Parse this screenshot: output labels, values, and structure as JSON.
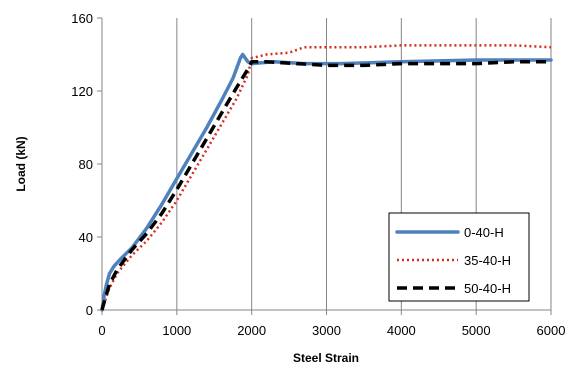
{
  "chart_data": {
    "type": "line",
    "title": "",
    "xlabel": "Steel  Strain",
    "ylabel": "Load  (kN)",
    "xlim": [
      0,
      6000
    ],
    "ylim": [
      0,
      160
    ],
    "xticks": [
      0,
      1000,
      2000,
      3000,
      4000,
      5000,
      6000
    ],
    "yticks": [
      0,
      40,
      80,
      120,
      160
    ],
    "xtick_labels": [
      "0",
      "1000",
      "2000",
      "3000",
      "4000",
      "5000",
      "6000"
    ],
    "ytick_labels": [
      "0",
      "40",
      "80",
      "120",
      "160"
    ],
    "grid": "vertical",
    "legend_position": "bottom-right",
    "series": [
      {
        "name": "0-40-H",
        "color": "#4f81bd",
        "style": "solid",
        "x": [
          0,
          30,
          60,
          100,
          160,
          250,
          400,
          600,
          800,
          1000,
          1200,
          1400,
          1600,
          1750,
          1850,
          1880,
          1950,
          2000,
          2300,
          2700,
          3200,
          4000,
          5000,
          6000
        ],
        "y": [
          0,
          8,
          14,
          20,
          24,
          28,
          34,
          45,
          58,
          72,
          86,
          100,
          115,
          127,
          138,
          140,
          136,
          135,
          136,
          135,
          135,
          136,
          137,
          137
        ]
      },
      {
        "name": "35-40-H",
        "color": "#d62d20",
        "style": "dotted",
        "x": [
          0,
          40,
          100,
          200,
          400,
          600,
          800,
          1000,
          1200,
          1400,
          1600,
          1800,
          1950,
          2000,
          2200,
          2500,
          2700,
          3000,
          3500,
          4000,
          4500,
          5000,
          5500,
          6000
        ],
        "y": [
          0,
          5,
          12,
          20,
          30,
          38,
          48,
          60,
          74,
          88,
          102,
          116,
          129,
          138,
          140,
          141,
          144,
          144,
          144,
          145,
          145,
          145,
          145,
          144
        ]
      },
      {
        "name": "50-40-H",
        "color": "#000000",
        "style": "dashed",
        "x": [
          0,
          40,
          100,
          200,
          400,
          600,
          800,
          1000,
          1200,
          1400,
          1600,
          1800,
          1950,
          2000,
          2200,
          2600,
          3000,
          3500,
          4000,
          4500,
          5000,
          5500,
          6000
        ],
        "y": [
          0,
          6,
          14,
          22,
          33,
          42,
          53,
          66,
          80,
          94,
          108,
          122,
          132,
          136,
          136,
          135,
          134,
          134,
          135,
          135,
          135,
          136,
          136
        ]
      }
    ]
  }
}
